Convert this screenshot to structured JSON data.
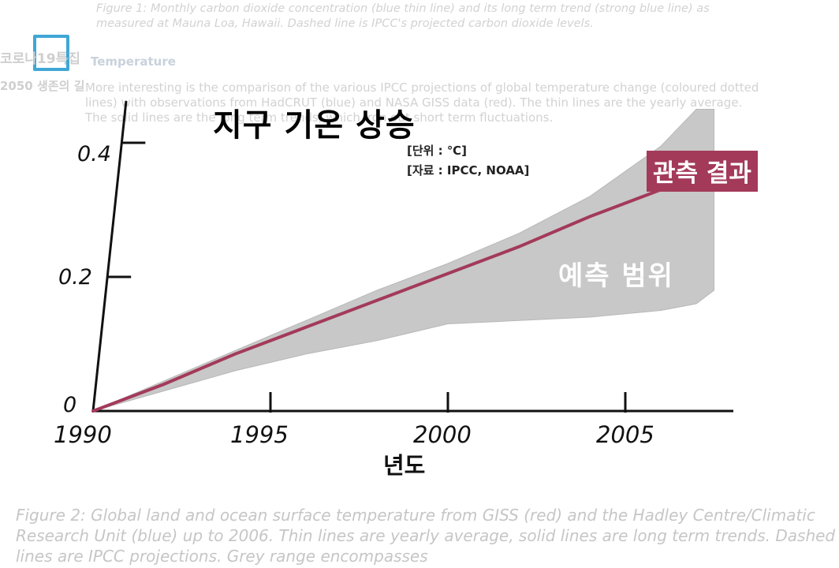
{
  "background": {
    "fig1_caption": "Figure 1: Monthly carbon dioxide concentration (blue thin line) and its long term trend (strong blue line) as measured at Mauna Loa, Hawaii. Dashed line is IPCC's projected carbon dioxide levels.",
    "section_heading": "Temperature",
    "paragraph": "More interesting is the comparison of the various IPCC projections of global temperature change (coloured dotted lines) with observations from HadCRUT (blue) and NASA GISS data (red). The thin lines are the yearly average. The solid lines are the long term trends, which iron out short term fluctuations.",
    "fig2_caption": "Figure 2: Global land and ocean surface temperature from GISS (red) and the Hadley Centre/Climatic Research Unit (blue) up to 2006. Thin lines are yearly average, solid lines are long term trends. Dashed lines are IPCC projections. Grey range encompasses",
    "channel_name": "코로나19특집",
    "channel_subtitle": "2050 생존의 길",
    "channel_logo_color": "#3fa7d6"
  },
  "chart_data": {
    "type": "area",
    "title": "지구 기온 상승",
    "unit_note": "[단위 : ℃]",
    "source_note": "[자료 : IPCC, NOAA]",
    "xlabel": "년도",
    "ylabel": "",
    "xlim": [
      1990,
      2008
    ],
    "ylim": [
      0,
      0.45
    ],
    "x_ticks": [
      "1990",
      "1995",
      "2000",
      "2005"
    ],
    "y_ticks": [
      "0",
      "0.2",
      "0.4"
    ],
    "series": [
      {
        "name": "관측 결과",
        "kind": "line",
        "color": "#a33a5a",
        "x": [
          1990,
          1992,
          1994,
          1996,
          1998,
          2000,
          2002,
          2004,
          2006
        ],
        "y": [
          0.0,
          0.04,
          0.085,
          0.125,
          0.165,
          0.205,
          0.245,
          0.29,
          0.33
        ]
      },
      {
        "name": "예측 범위",
        "kind": "band",
        "color": "#c8c8c8",
        "x": [
          1990,
          1992,
          1994,
          1996,
          1998,
          2000,
          2002,
          2004,
          2006,
          2007,
          2007.5
        ],
        "lower": [
          0.0,
          0.03,
          0.06,
          0.085,
          0.105,
          0.13,
          0.135,
          0.14,
          0.15,
          0.16,
          0.18
        ],
        "upper": [
          0.0,
          0.045,
          0.09,
          0.135,
          0.18,
          0.22,
          0.265,
          0.32,
          0.395,
          0.45,
          0.45
        ]
      }
    ]
  },
  "colors": {
    "axis": "#111111",
    "observed": "#a33a5a",
    "range_fill": "#c8c8c8"
  }
}
